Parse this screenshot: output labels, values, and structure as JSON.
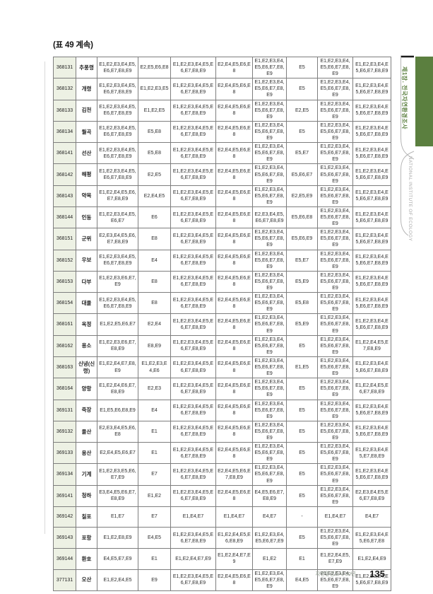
{
  "page": {
    "title": "(표 49 계속)",
    "footer": {
      "label": "자연환경조사 30년",
      "page_number": "135"
    }
  },
  "sidebar": {
    "chapter_tab_label": "제1장. 전국자연환경조사",
    "institute_label": "NATIONAL INSTITUTE OF ECOLOGY",
    "accent_color": "#5b7f3f"
  },
  "colors": {
    "code_column_bg": "#edf1e4",
    "table_border": "#7e7e7e",
    "footer_label": "#8d998b"
  },
  "table": {
    "rows": [
      [
        "368131",
        "추풍령",
        "E1,E2,E3,E4,E5,E6,E7,E8,E9",
        "E2,E5,E6,E8",
        "E1,E2,E3,E4,E5,E6,E7,E8,E9",
        "E2,E4,E5,E6,E8",
        "E1,E2,E3,E4,E5,E6,E7,E8,E9",
        "E5",
        "E1,E2,E3,E4,E5,E6,E7,E8,E9",
        "E1,E2,E3,E4,E5,E6,E7,E8,E9"
      ],
      [
        "368132",
        "개령",
        "E1,E2,E3,E4,E5,E6,E7,E8,E9",
        "E1,E2,E3,E5",
        "E1,E2,E3,E4,E5,E6,E7,E8,E9",
        "E2,E4,E5,E6,E8",
        "E1,E2,E3,E4,E5,E6,E7,E8,E9",
        "E5",
        "E1,E2,E3,E4,E5,E6,E7,E8,E9",
        "E1,E2,E3,E4,E5,E6,E7,E8,E9"
      ],
      [
        "368133",
        "김천",
        "E1,E2,E3,E4,E5,E6,E7,E8,E9",
        "E1,E2,E5",
        "E1,E2,E3,E4,E5,E6,E7,E8,E9",
        "E2,E4,E5,E6,E8",
        "E1,E2,E3,E4,E5,E6,E7,E8,E9",
        "E2,E5",
        "E1,E2,E3,E4,E5,E6,E7,E8,E9",
        "E1,E2,E3,E4,E5,E6,E7,E8,E9"
      ],
      [
        "368134",
        "월곡",
        "E1,E2,E3,E4,E5,E6,E7,E8,E9",
        "E5,E8",
        "E1,E2,E3,E4,E5,E6,E7,E8,E9",
        "E2,E4,E5,E6,E8",
        "E1,E2,E3,E4,E5,E6,E7,E8,E9",
        "E5",
        "E1,E2,E3,E4,E5,E6,E7,E8,E9",
        "E1,E2,E3,E4,E5,E6,E7,E8,E9"
      ],
      [
        "368141",
        "선산",
        "E1,E2,E3,E4,E5,E6,E7,E8,E9",
        "E5,E8",
        "E1,E2,E3,E4,E5,E6,E7,E8,E9",
        "E2,E4,E5,E6,E8",
        "E1,E2,E3,E4,E5,E6,E7,E8,E9",
        "E5,E7",
        "E1,E2,E3,E4,E5,E6,E7,E8,E9",
        "E1,E2,E3,E4,E5,E6,E7,E8,E9"
      ],
      [
        "368142",
        "해평",
        "E1,E2,E3,E4,E5,E6,E7,E8,E9",
        "E2,E5",
        "E1,E2,E3,E4,E5,E6,E7,E8,E9",
        "E2,E4,E5,E6,E8",
        "E1,E2,E3,E4,E5,E6,E7,E8,E9",
        "E5,E6,E7",
        "E1,E2,E3,E4,E5,E6,E7,E8,E9",
        "E1,E2,E3,E4,E5,E6,E7,E8,E9"
      ],
      [
        "368143",
        "약목",
        "E1,E2,E4,E5,E6,E7,E8,E9",
        "E2,E4,E5",
        "E1,E2,E3,E4,E5,E6,E7,E8,E9",
        "E2,E4,E5,E6,E8",
        "E1,E2,E3,E4,E5,E6,E7,E8,E9",
        "E2,E5,E9",
        "E1,E2,E3,E4,E5,E6,E7,E8,E9",
        "E1,E2,E3,E4,E5,E6,E7,E8,E9"
      ],
      [
        "368144",
        "인동",
        "E1,E2,E3,E4,E5,E6,E7",
        "E6",
        "E1,E2,E3,E4,E5,E6,E7,E8,E9",
        "E2,E4,E5,E6,E8",
        "E2,E3,E4,E5,E6,E7,E8,E9",
        "E5,E6,E8",
        "E1,E2,E3,E4,E5,E6,E7,E8,E9",
        "E1,E2,E3,E4,E5,E6,E7,E8,E9"
      ],
      [
        "368151",
        "군위",
        "E2,E3,E4,E5,E6,E7,E8,E9",
        "E8",
        "E1,E2,E3,E4,E5,E6,E7,E8,E9",
        "E2,E4,E5,E6,E8",
        "E1,E2,E3,E4,E5,E6,E7,E8,E9",
        "E5,E6,E9",
        "E1,E2,E3,E4,E5,E6,E7,E8,E9",
        "E1,E2,E3,E4,E5,E6,E7,E8,E9"
      ],
      [
        "368152",
        "우보",
        "E1,E2,E3,E4,E5,E6,E7,E8,E9",
        "E4",
        "E1,E2,E3,E4,E5,E6,E7,E8,E9",
        "E2,E4,E5,E6,E8",
        "E1,E2,E3,E4,E5,E6,E7,E8,E9",
        "E5,E7",
        "E1,E2,E3,E4,E5,E6,E7,E8,E9",
        "E1,E2,E3,E4,E5,E6,E7,E8,E9"
      ],
      [
        "368153",
        "다부",
        "E1,E2,E3,E6,E7,E9",
        "E8",
        "E1,E2,E3,E4,E5,E6,E7,E8,E9",
        "E2,E4,E5,E6,E8",
        "E1,E2,E3,E4,E5,E6,E7,E8,E9",
        "E5,E9",
        "E1,E2,E3,E4,E5,E6,E7,E8,E9",
        "E1,E2,E3,E4,E5,E6,E7,E8,E9"
      ],
      [
        "368154",
        "대율",
        "E1,E2,E3,E4,E5,E6,E7,E8,E9",
        "E8",
        "E1,E2,E3,E4,E5,E6,E7,E8,E9",
        "E2,E4,E5,E6,E8",
        "E1,E2,E3,E4,E5,E6,E7,E8,E9",
        "E5,E8",
        "E1,E2,E3,E4,E5,E6,E7,E8,E9",
        "E1,E2,E3,E4,E5,E6,E7,E8,E9"
      ],
      [
        "368161",
        "옥정",
        "E1,E2,E5,E6,E7",
        "E2,E4",
        "E1,E2,E3,E4,E5,E6,E7,E8,E9",
        "E2,E4,E5,E6,E8",
        "E1,E2,E3,E4,E5,E6,E7,E8,E9",
        "E5,E9",
        "E1,E2,E3,E4,E5,E6,E7,E8,E9",
        "E1,E2,E3,E4,E5,E6,E7,E8,E9"
      ],
      [
        "368162",
        "용소",
        "E1,E2,E3,E6,E7,E8,E9",
        "E8,E9",
        "E1,E2,E3,E4,E5,E6,E7,E8,E9",
        "E2,E4,E5,E6,E8",
        "E1,E2,E3,E4,E5,E6,E7,E8,E9",
        "E5",
        "E1,E2,E3,E4,E5,E6,E7,E8,E9",
        "E1,E2,E4,E5,E7,E8,E9"
      ],
      [
        "368163",
        "신녕(신령)",
        "E1,E2,E4,E7,E8,E9",
        "E1,E2,E3,E4,E6",
        "E1,E2,E3,E4,E5,E6,E7,E8,E9",
        "E2,E4,E5,E6,E8",
        "E1,E2,E3,E4,E5,E6,E7,E8,E9",
        "E1,E5",
        "E1,E2,E3,E4,E5,E6,E7,E8,E9",
        "E1,E2,E3,E4,E5,E6,E7,E8,E9"
      ],
      [
        "368164",
        "양항",
        "E1,E2,E4,E6,E7,E8,E9",
        "E2,E3",
        "E1,E2,E3,E4,E5,E6,E7,E8,E9",
        "E2,E4,E5,E6,E8",
        "E1,E2,E3,E4,E5,E6,E7,E8,E9",
        "E5",
        "E1,E2,E3,E4,E5,E6,E7,E8,E9",
        "E1,E2,E4,E5,E6,E7,E8,E9"
      ],
      [
        "369131",
        "죽장",
        "E1,E5,E6,E8,E9",
        "E4",
        "E1,E2,E3,E4,E5,E6,E7,E8,E9",
        "E2,E4,E5,E6,E8",
        "E1,E2,E3,E4,E5,E6,E7,E8,E9",
        "E5",
        "E1,E2,E3,E4,E5,E6,E7,E8,E9",
        "E1,E2,E3,E4,E5,E6,E7,E8,E9"
      ],
      [
        "369132",
        "율산",
        "E2,E3,E4,E5,E6,E8",
        "E1",
        "E1,E2,E3,E4,E5,E6,E7,E8,E9",
        "E2,E4,E5,E6,E8",
        "E1,E2,E3,E4,E5,E6,E7,E8,E9",
        "E5",
        "E1,E2,E3,E4,E5,E6,E7,E8,E9",
        "E1,E2,E3,E4,E5,E6,E7,E8,E9"
      ],
      [
        "369133",
        "용산",
        "E2,E4,E5,E6,E7",
        "E1",
        "E1,E2,E3,E4,E5,E6,E7,E8,E9",
        "E2,E4,E5,E6,E8",
        "E1,E2,E3,E4,E5,E6,E7,E8,E9",
        "E5",
        "E1,E2,E3,E4,E5,E6,E7,E8,E9",
        "E1,E2,E3,E4,E5,E7,E8,E9"
      ],
      [
        "369134",
        "기계",
        "E1,E2,E3,E5,E6,E7,E9",
        "E7",
        "E1,E2,E3,E4,E5,E6,E7,E8,E9",
        "E2,E4,E5,E6,E7,E8,E9",
        "E1,E2,E3,E4,E5,E6,E7,E8,E9",
        "E5",
        "E1,E2,E3,E4,E5,E6,E7,E8,E9",
        "E1,E2,E3,E4,E5,E6,E7,E8,E9"
      ],
      [
        "369141",
        "청하",
        "E3,E4,E5,E6,E7,E8,E9",
        "E1,E2",
        "E1,E2,E3,E4,E5,E6,E7,E8,E9",
        "E2,E4,E5,E6,E8",
        "E4,E5,E6,E7,E8,E9",
        "E5",
        "E1,E2,E3,E4,E5,E6,E7,E8,E9",
        "E2,E3,E4,E5,E6,E7,E8,E9"
      ],
      [
        "369142",
        "칠포",
        "E1,E7",
        "E7",
        "E1,E4,E7",
        "E1,E4,E7",
        "E4,E7",
        "-",
        "E1,E4,E7",
        "E4,E7"
      ],
      [
        "369143",
        "포항",
        "E1,E2,E8,E9",
        "E4,E5",
        "E1,E2,E3,E4,E5,E6,E7,E8,E9",
        "E1,E2,E4,E5,E6,E8,E9",
        "E1,E2,E3,E4,E5,E6,E7,E9",
        "E5",
        "E1,E2,E3,E4,E5,E6,E7,E8,E9",
        "E1,E2,E3,E4,E5,E6,E7,E8"
      ],
      [
        "369144",
        "환호",
        "E4,E5,E7,E9",
        "E1",
        "E1,E2,E4,E7,E9",
        "E1,E2,E4,E7,E9",
        "E1,E2",
        "E1",
        "E1,E2,E4,E5,E7,E9",
        "E1,E2,E4,E9"
      ],
      [
        "377131",
        "오산",
        "E1,E2,E4,E5",
        "E9",
        "E1,E2,E3,E4,E5,E6,E7,E8,E9",
        "E2,E4,E5,E6,E8",
        "E1,E2,E3,E4,E5,E6,E7,E8,E9",
        "E4,E5",
        "E1,E2,E3,E4,E5,E6,E7,E8,E9",
        "E1,E2,E3,E4,E5,E6,E7,E8,E9"
      ]
    ]
  }
}
